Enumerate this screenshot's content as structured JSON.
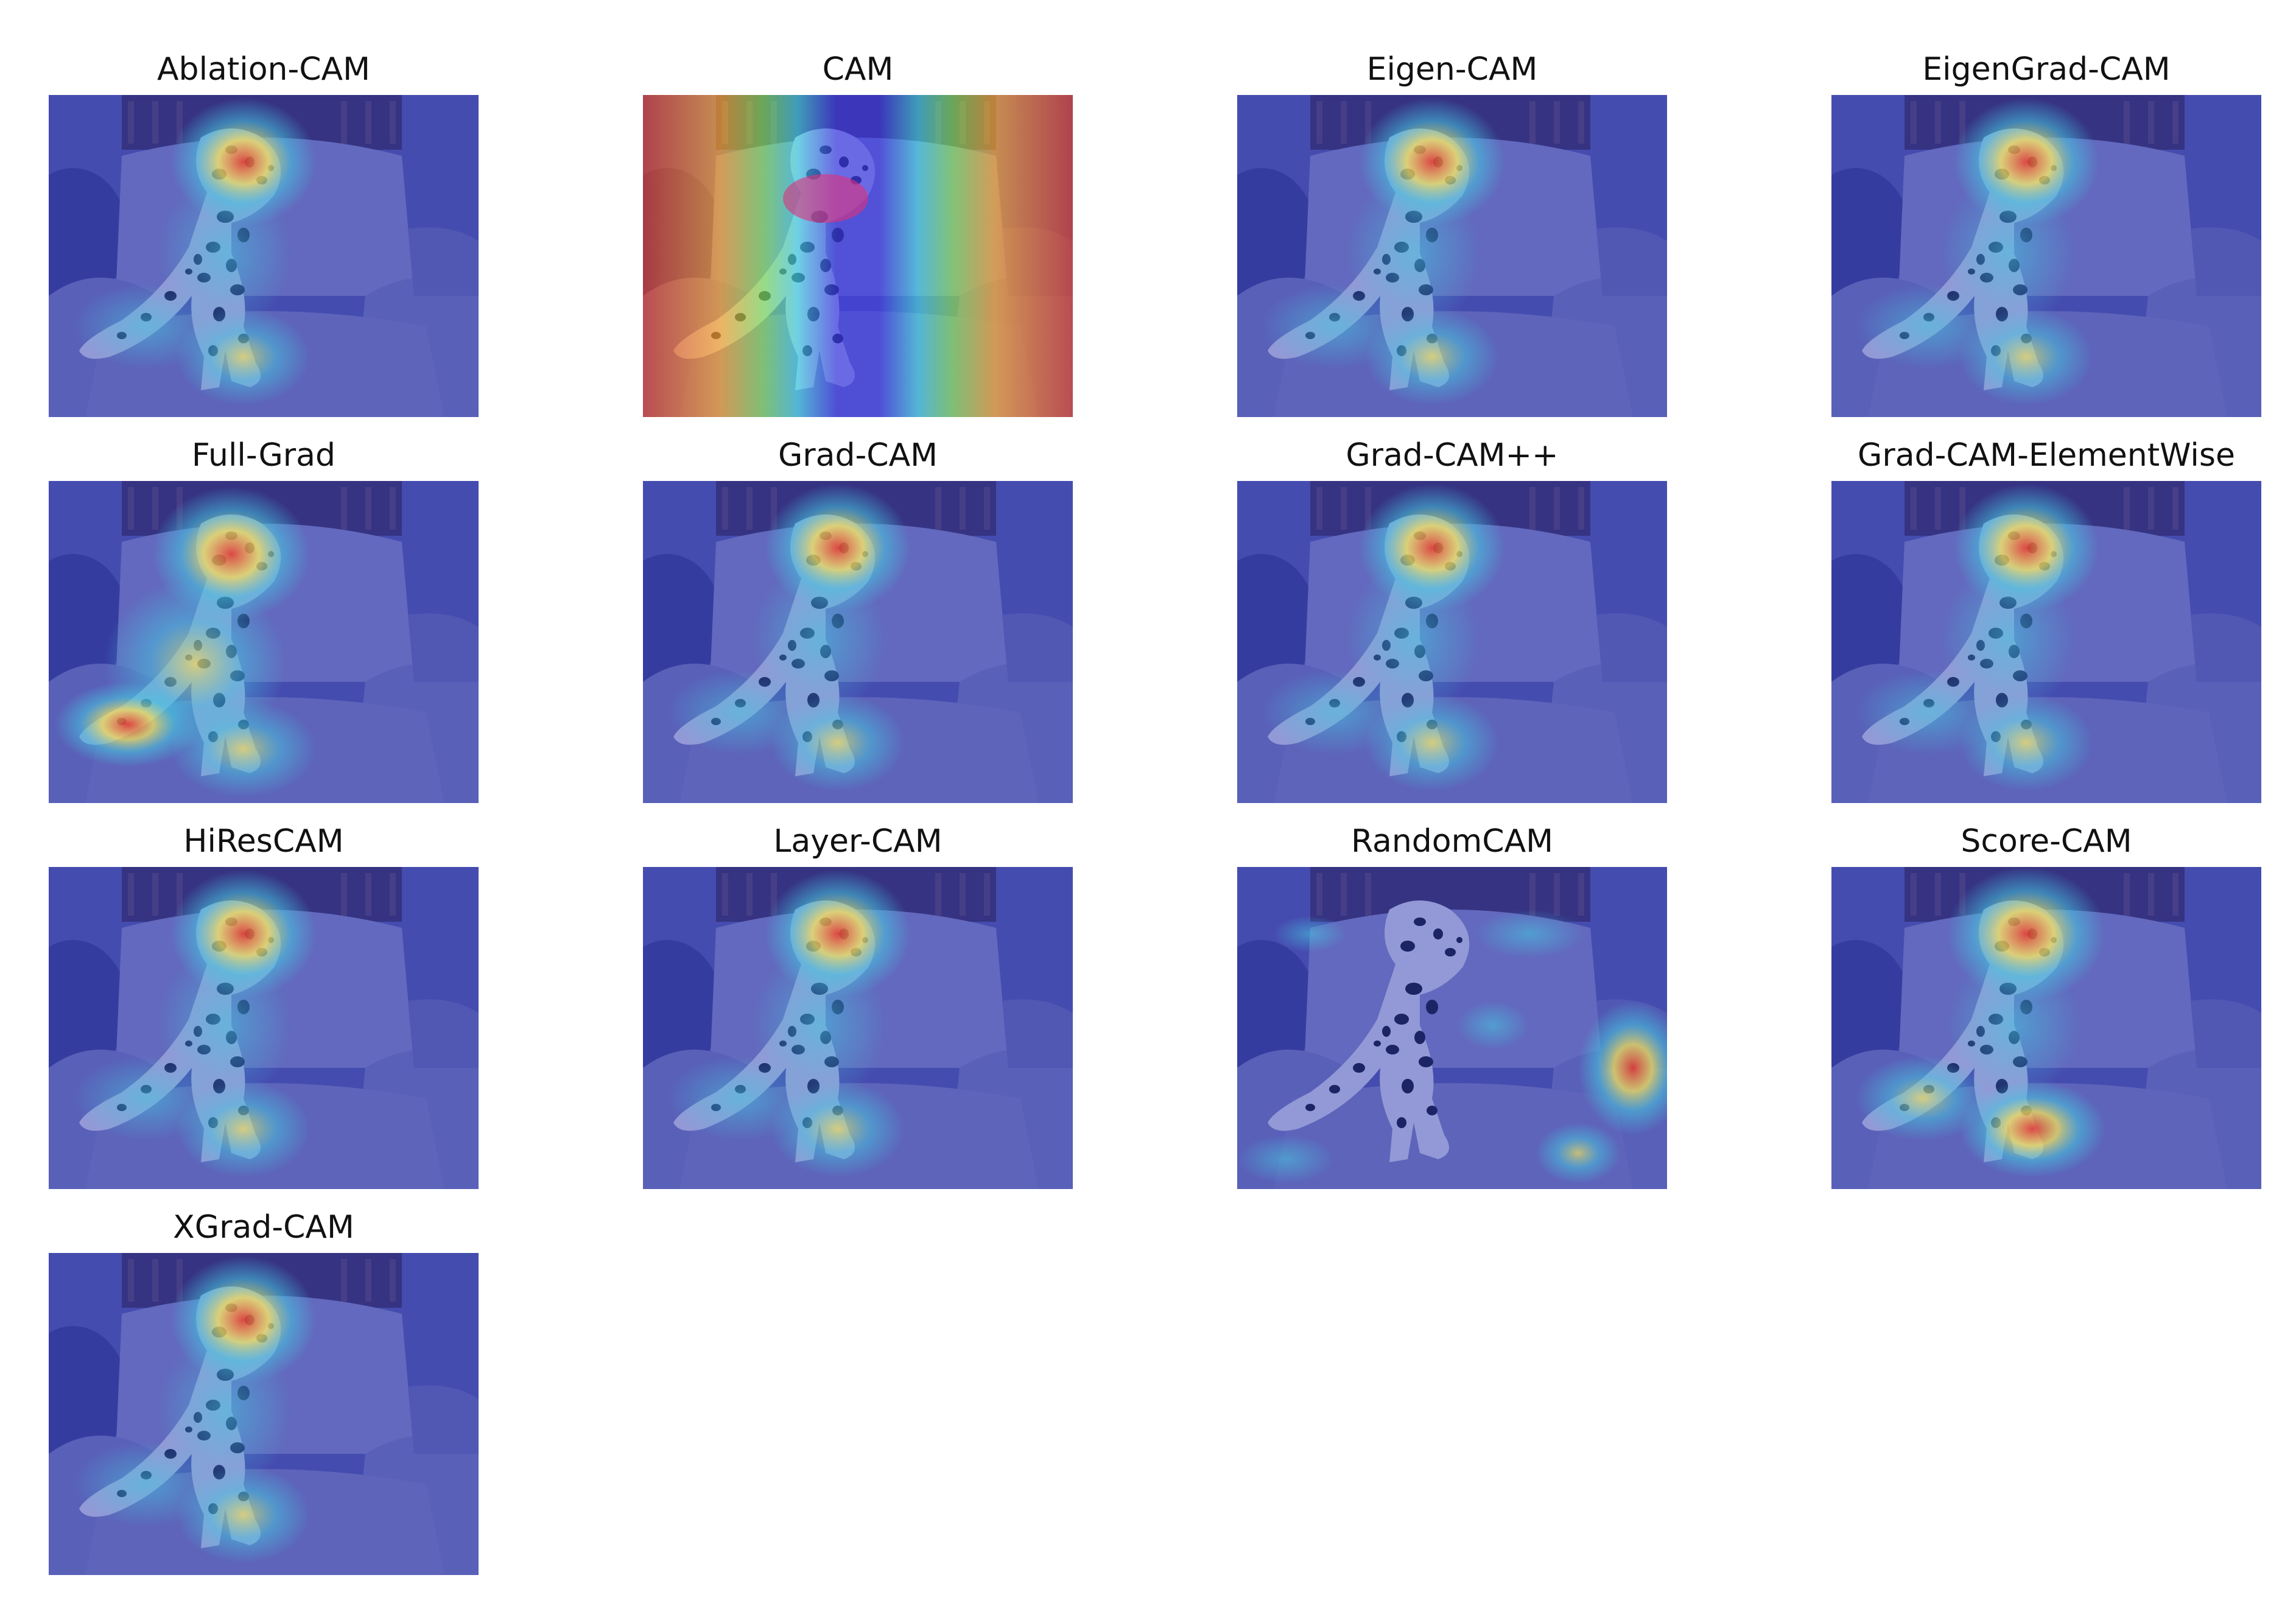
{
  "figure": {
    "panels": [
      {
        "title": "Ablation-CAM",
        "overlay": "focused-head"
      },
      {
        "title": "CAM",
        "overlay": "rainbow-bands"
      },
      {
        "title": "Eigen-CAM",
        "overlay": "focused-head"
      },
      {
        "title": "EigenGrad-CAM",
        "overlay": "focused-head"
      },
      {
        "title": "Full-Grad",
        "overlay": "full-grad"
      },
      {
        "title": "Grad-CAM",
        "overlay": "focused-head"
      },
      {
        "title": "Grad-CAM++",
        "overlay": "focused-head"
      },
      {
        "title": "Grad-CAM-ElementWise",
        "overlay": "focused-head"
      },
      {
        "title": "HiResCAM",
        "overlay": "focused-head"
      },
      {
        "title": "Layer-CAM",
        "overlay": "focused-head"
      },
      {
        "title": "RandomCAM",
        "overlay": "random"
      },
      {
        "title": "Score-CAM",
        "overlay": "score"
      },
      {
        "title": "XGrad-CAM",
        "overlay": "focused-head"
      }
    ],
    "colors": {
      "cold": "#2c3cb8",
      "cool": "#45c7e0",
      "warm": "#f3e25a",
      "hot": "#e83a2c",
      "couch": "#8f8fc4",
      "dog_spots": "#111122"
    }
  }
}
